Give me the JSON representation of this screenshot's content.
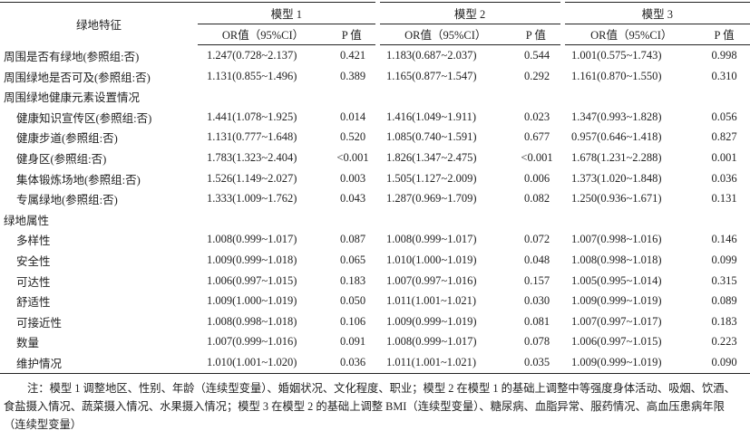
{
  "table": {
    "header": {
      "corner": "绿地特征",
      "models": [
        "模型 1",
        "模型 2",
        "模型 3"
      ],
      "or_label": "OR值（95%CI）",
      "p_label": "P 值"
    },
    "groups": [
      {
        "rows": [
          [
            "周围是否有绿地(参照组:否)",
            "1.247(0.728~2.137)",
            "0.421",
            "1.183(0.687~2.037)",
            "0.544",
            "1.001(0.575~1.743)",
            "0.998"
          ],
          [
            "周围绿地是否可及(参照组:否)",
            "1.131(0.855~1.496)",
            "0.389",
            "1.165(0.877~1.547)",
            "0.292",
            "1.161(0.870~1.550)",
            "0.310"
          ]
        ]
      },
      {
        "title": "周围绿地健康元素设置情况",
        "rows": [
          [
            "健康知识宣传区(参照组:否)",
            "1.441(1.078~1.925)",
            "0.014",
            "1.416(1.049~1.911)",
            "0.023",
            "1.347(0.993~1.828)",
            "0.056"
          ],
          [
            "健康步道(参照组:否)",
            "1.131(0.777~1.648)",
            "0.520",
            "1.085(0.740~1.591)",
            "0.677",
            "0.957(0.646~1.418)",
            "0.827"
          ],
          [
            "健身区(参照组:否)",
            "1.783(1.323~2.404)",
            "<0.001",
            "1.826(1.347~2.475)",
            "<0.001",
            "1.678(1.231~2.288)",
            "0.001"
          ],
          [
            "集体锻炼场地(参照组:否)",
            "1.526(1.149~2.027)",
            "0.003",
            "1.505(1.127~2.009)",
            "0.006",
            "1.373(1.020~1.848)",
            "0.036"
          ],
          [
            "专属绿地(参照组:否)",
            "1.333(1.009~1.762)",
            "0.043",
            "1.287(0.969~1.709)",
            "0.082",
            "1.250(0.936~1.671)",
            "0.131"
          ]
        ]
      },
      {
        "title": "绿地属性",
        "rows": [
          [
            "多样性",
            "1.008(0.999~1.017)",
            "0.087",
            "1.008(0.999~1.017)",
            "0.072",
            "1.007(0.998~1.016)",
            "0.146"
          ],
          [
            "安全性",
            "1.009(0.999~1.018)",
            "0.065",
            "1.010(1.000~1.019)",
            "0.048",
            "1.008(0.998~1.018)",
            "0.099"
          ],
          [
            "可达性",
            "1.006(0.997~1.015)",
            "0.183",
            "1.007(0.997~1.016)",
            "0.157",
            "1.005(0.995~1.014)",
            "0.315"
          ],
          [
            "舒适性",
            "1.009(1.000~1.019)",
            "0.050",
            "1.011(1.001~1.021)",
            "0.030",
            "1.009(0.999~1.019)",
            "0.089"
          ],
          [
            "可接近性",
            "1.008(0.998~1.018)",
            "0.106",
            "1.009(0.999~1.019)",
            "0.081",
            "1.007(0.997~1.017)",
            "0.183"
          ],
          [
            "数量",
            "1.007(0.999~1.016)",
            "0.091",
            "1.008(0.999~1.017)",
            "0.078",
            "1.006(0.997~1.015)",
            "0.223"
          ],
          [
            "维护情况",
            "1.010(1.001~1.020)",
            "0.036",
            "1.011(1.001~1.021)",
            "0.035",
            "1.009(0.999~1.019)",
            "0.090"
          ]
        ]
      }
    ]
  },
  "note": "注：模型 1 调整地区、性别、年龄（连续型变量）、婚姻状况、文化程度、职业；模型 2 在模型 1 的基础上调整中等强度身体活动、吸烟、饮酒、食盐摄入情况、蔬菜摄入情况、水果摄入情况；模型 3 在模型 2 的基础上调整 BMI（连续型变量）、糖尿病、血脂异常、服药情况、高血压患病年限（连续型变量）"
}
